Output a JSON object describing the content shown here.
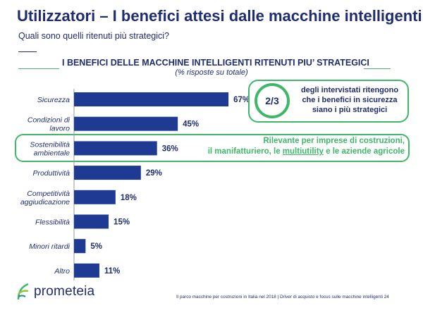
{
  "header": {
    "title": "Utilizzatori – I benefici attesi dalle macchine intelligenti",
    "subtitle": "Quali sono quelli ritenuti più strategici?"
  },
  "chart_data": {
    "type": "bar",
    "orientation": "horizontal",
    "title": "I BENEFICI DELLE MACCHINE INTELLIGENTI RITENUTI PIU’ STRATEGICI",
    "subtitle": "(% risposte su totale)",
    "categories": [
      "Sicurezza",
      "Condizioni di lavoro",
      "Sostenibilità ambientale",
      "Produttività",
      "Competitività aggiudicazione",
      "Flessibilità",
      "Minori ritardi",
      "Altro"
    ],
    "category_lines": [
      [
        "Sicurezza"
      ],
      [
        "Condizioni di",
        "lavoro"
      ],
      [
        "Sostenibilità",
        "ambientale"
      ],
      [
        "Produttività"
      ],
      [
        "Competitività",
        "aggiudicazione"
      ],
      [
        "Flessibilità"
      ],
      [
        "Minori ritardi"
      ],
      [
        "Altro"
      ]
    ],
    "values": [
      67,
      45,
      36,
      29,
      18,
      15,
      5,
      11
    ],
    "value_labels": [
      "67%",
      "45%",
      "36%",
      "29%",
      "18%",
      "15%",
      "5%",
      "11%"
    ],
    "xlim": [
      0,
      100
    ],
    "grid": false,
    "legend": "none",
    "bar_color": "#1f3a93"
  },
  "callout": {
    "fraction": "2/3",
    "text_lines": [
      "degli intervistati ritengono",
      "che i benefici in sicurezza",
      "siano i più strategici"
    ]
  },
  "highlight": {
    "line1": "Rilevante per imprese di costruzioni,",
    "line2_pre": "il manifatturiero, le ",
    "line2_u": "multiutility",
    "line2_post": " e le aziende agricole"
  },
  "logo": {
    "text": "prometeia"
  },
  "footer": {
    "text": "Il parco macchine per costruzioni in Italia nel 2018 | Driver di acquisto e focus sulle macchine intelligenti 24"
  },
  "colors": {
    "accent_green": "#3fb76a",
    "navy": "#1f2d6e",
    "bar": "#1f3a93"
  }
}
